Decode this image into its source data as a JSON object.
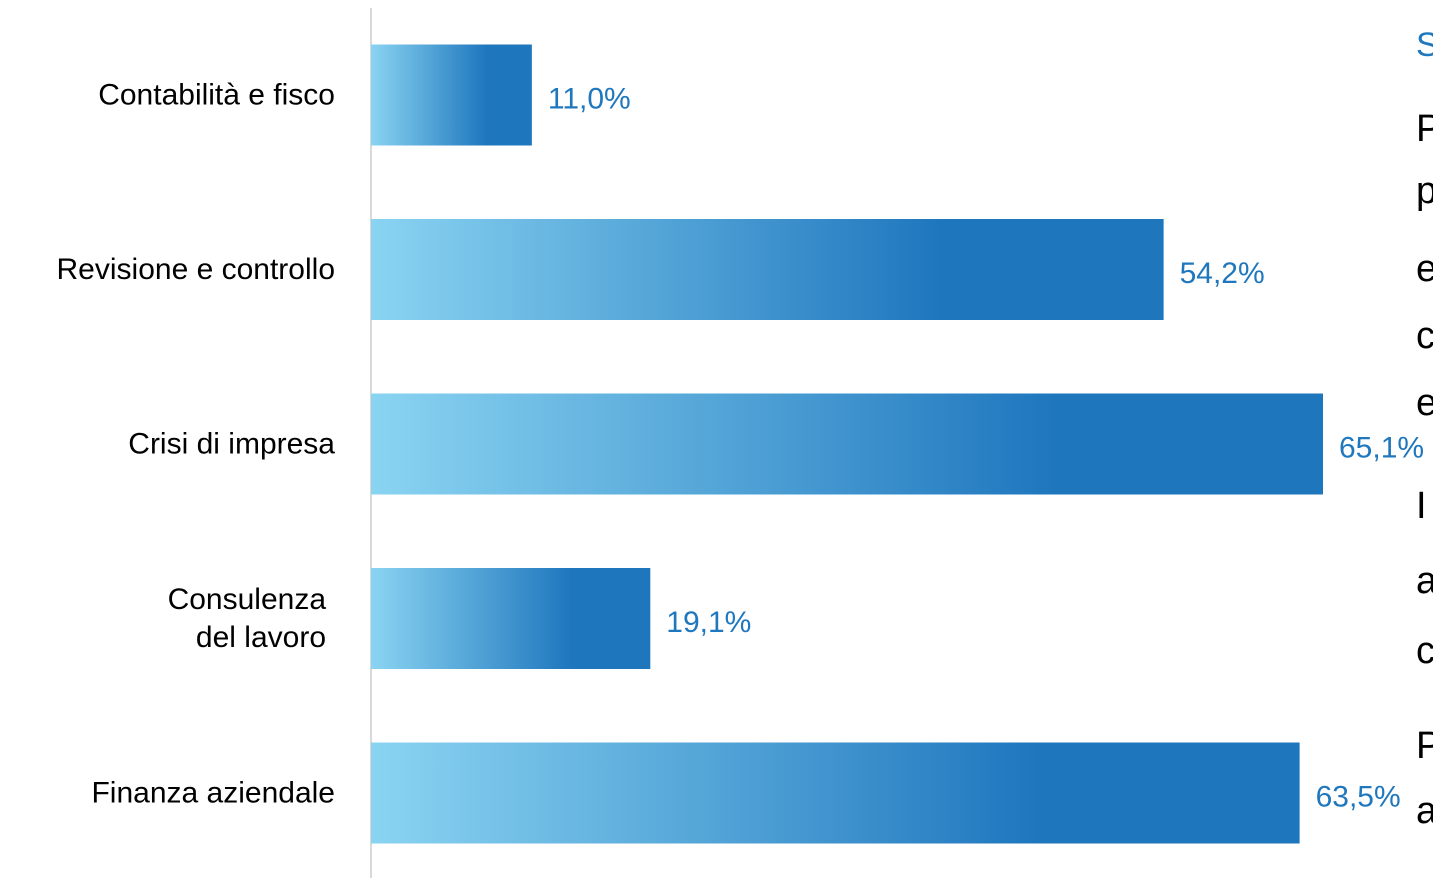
{
  "chart_data": {
    "type": "bar",
    "orientation": "horizontal",
    "categories": [
      [
        "Contabilità e fisco"
      ],
      [
        "Revisione e controllo"
      ],
      [
        "Crisi di impresa"
      ],
      [
        "Consulenza",
        "del lavoro"
      ],
      [
        "Finanza aziendale"
      ]
    ],
    "values": [
      11.0,
      54.2,
      65.1,
      19.1,
      63.5
    ],
    "value_labels": [
      "11,0%",
      "54,2%",
      "65,1%",
      "19,1%",
      "63,5%"
    ],
    "xlim": [
      0,
      70
    ],
    "grid": false,
    "bar_gradient": [
      "#8ad4f2",
      "#1e76bd"
    ],
    "label_color": "#1f77bd"
  },
  "side_panel": {
    "title_fragment": "S",
    "text_fragments": [
      "P",
      "p",
      "e",
      "c",
      "e",
      "I",
      "a",
      "c",
      "P",
      "a"
    ]
  }
}
